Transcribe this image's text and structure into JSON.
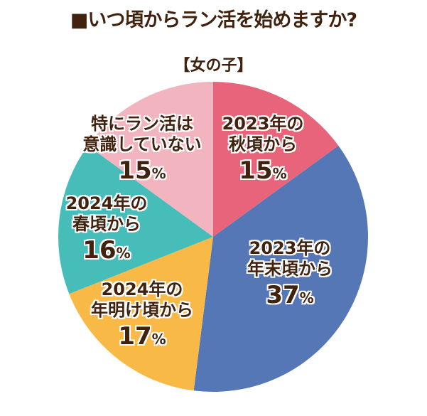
{
  "chart_data": {
    "type": "pie",
    "title": "■いつ頃からラン活を始めますか?",
    "subtitle": "【女の子】",
    "unit": "%",
    "start": "top, clockwise",
    "slices": [
      {
        "line1": "2023年の",
        "line2": "秋頃から",
        "value": 15,
        "color": "#E8647A"
      },
      {
        "line1": "2023年の",
        "line2": "年末頃から",
        "value": 37,
        "color": "#5677B5"
      },
      {
        "line1": "2024年の",
        "line2": "年明け頃から",
        "value": 17,
        "color": "#F8B947"
      },
      {
        "line1": "2024年の",
        "line2": "春頃から",
        "value": 16,
        "color": "#46BDB9"
      },
      {
        "line1": "特にラン活は",
        "line2": "意識していない",
        "value": 15,
        "color": "#F2B5C0"
      }
    ]
  }
}
